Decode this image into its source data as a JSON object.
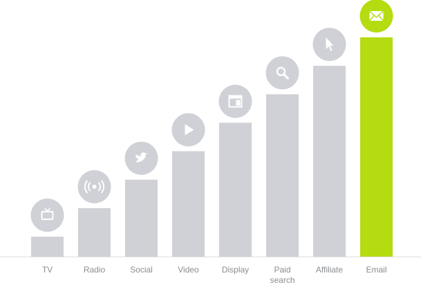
{
  "chart_data": {
    "type": "bar",
    "categories": [
      "TV",
      "Radio",
      "Social",
      "Video",
      "Display",
      "Paid search",
      "Affiliate",
      "Email"
    ],
    "values": [
      7,
      17,
      27,
      37,
      47,
      57,
      67,
      77
    ],
    "colors": [
      "#cfd1d6",
      "#cfd1d6",
      "#cfd1d6",
      "#cfd1d6",
      "#cfd1d6",
      "#cfd1d6",
      "#cfd1d6",
      "#b5dc10"
    ],
    "ylim": [
      0,
      77
    ]
  }
}
